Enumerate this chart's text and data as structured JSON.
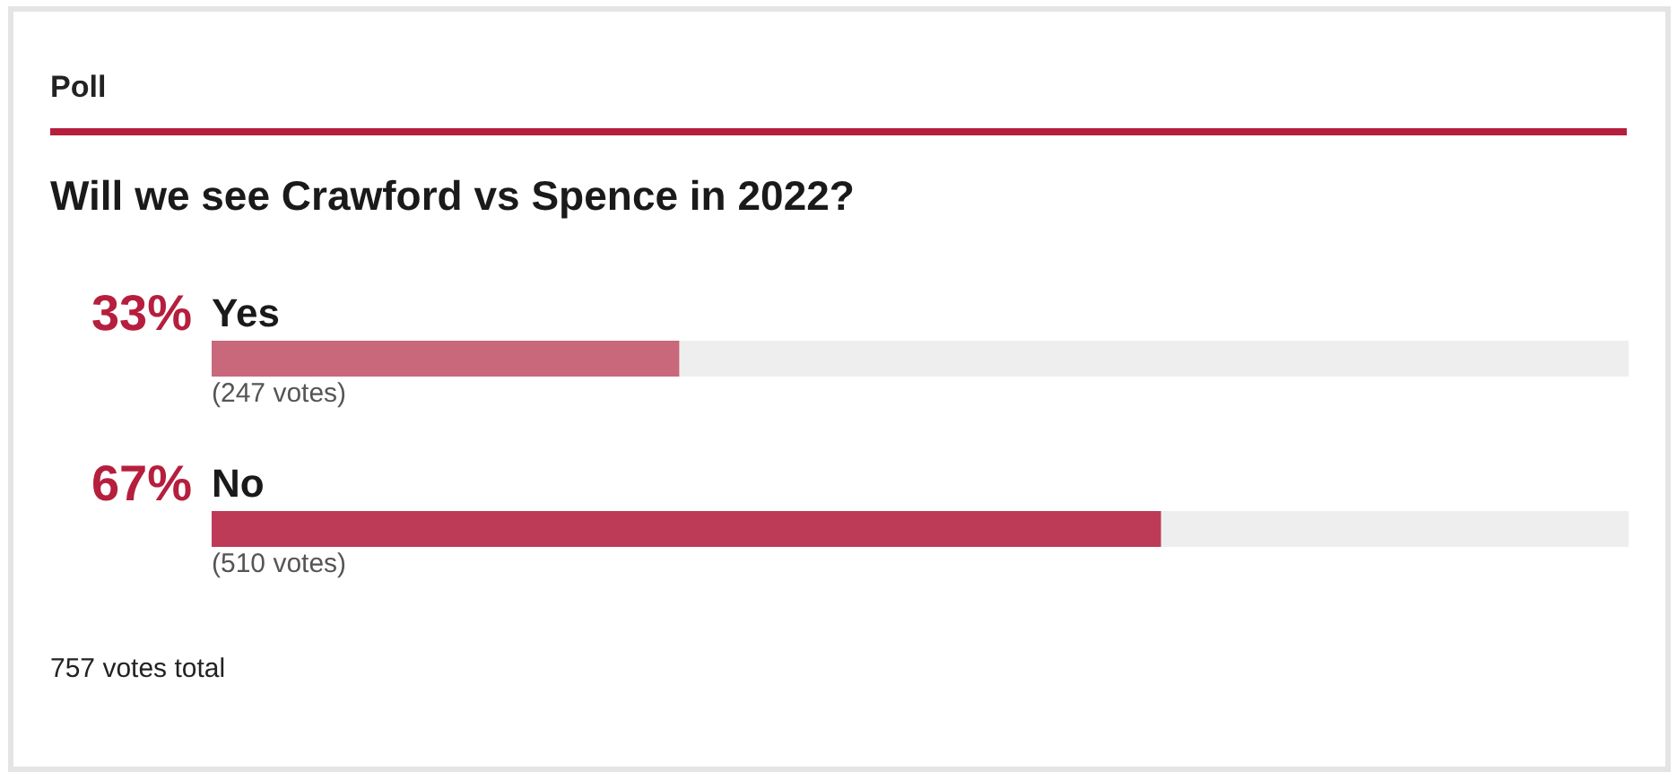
{
  "chart_data": {
    "type": "bar",
    "orientation": "horizontal",
    "title": "Poll",
    "subtitle": "Will we see Crawford vs Spence in 2022?",
    "categories": [
      "Yes",
      "No"
    ],
    "values": [
      33,
      67
    ],
    "colors": [
      "#c8687a",
      "#bd3b57"
    ],
    "xlim": [
      0,
      100
    ],
    "tick_labels": "y",
    "value_labels": [
      "33%",
      "67%"
    ],
    "annotations": [
      {
        "text": "(247 votes)",
        "x": 0,
        "y": "Yes"
      },
      {
        "text": "(510 votes)",
        "x": 0,
        "y": "No"
      },
      "757 votes total"
    ]
  }
}
